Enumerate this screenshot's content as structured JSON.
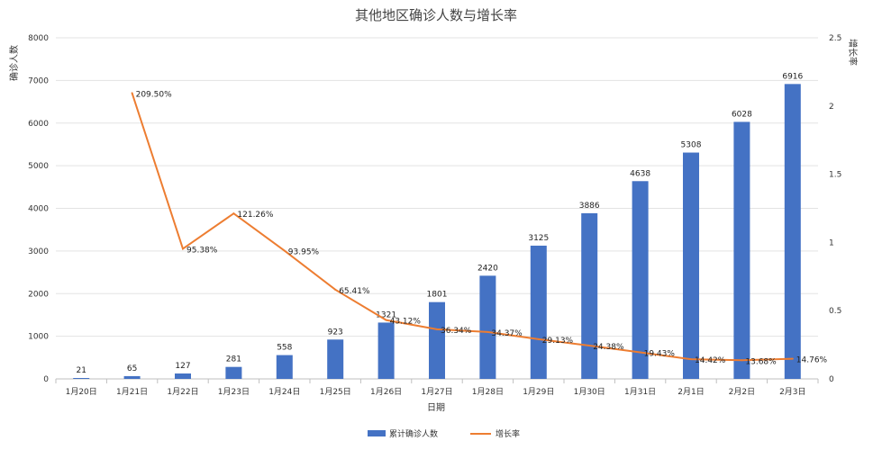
{
  "chart_data": {
    "type": "bar",
    "title": "其他地区确诊人数与增长率",
    "xlabel": "日期",
    "ylabel": "确诊人数",
    "y2label": "增长率",
    "categories": [
      "1月20日",
      "1月21日",
      "1月22日",
      "1月23日",
      "1月24日",
      "1月25日",
      "1月26日",
      "1月27日",
      "1月28日",
      "1月29日",
      "1月30日",
      "1月31日",
      "2月1日",
      "2月2日",
      "2月3日"
    ],
    "series": [
      {
        "name": "累计确诊人数",
        "type": "bar",
        "axis": "left",
        "color": "#4472C4",
        "values": [
          21,
          65,
          127,
          281,
          558,
          923,
          1321,
          1801,
          2420,
          3125,
          3886,
          4638,
          5308,
          6028,
          6916
        ],
        "labels": [
          "21",
          "65",
          "127",
          "281",
          "558",
          "923",
          "1321",
          "1801",
          "2420",
          "3125",
          "3886",
          "4638",
          "5308",
          "6028",
          "6916"
        ]
      },
      {
        "name": "增长率",
        "type": "line",
        "axis": "right",
        "color": "#ED7D31",
        "values": [
          null,
          2.095,
          0.9538,
          1.2126,
          0.9395,
          0.6541,
          0.4312,
          0.3634,
          0.3437,
          0.2913,
          0.2438,
          0.1943,
          0.1442,
          0.1368,
          0.1476
        ],
        "labels": [
          "",
          "209.50%",
          "95.38%",
          "121.26%",
          "93.95%",
          "65.41%",
          "43.12%",
          "36.34%",
          "34.37%",
          "29.13%",
          "24.38%",
          "19.43%",
          "14.42%",
          "13.68%",
          "14.76%"
        ]
      }
    ],
    "ylim": [
      0,
      8000
    ],
    "yticks": [
      "0",
      "1000",
      "2000",
      "3000",
      "4000",
      "5000",
      "6000",
      "7000",
      "8000"
    ],
    "y2lim": [
      0,
      2.5
    ],
    "y2ticks": [
      "0",
      "0.5",
      "1",
      "1.5",
      "2",
      "2.5"
    ],
    "grid": true,
    "legend": "bottom"
  }
}
